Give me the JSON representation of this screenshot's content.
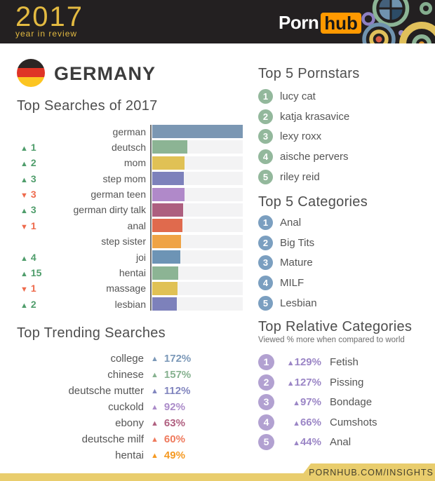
{
  "header": {
    "year": "2017",
    "year_sub": "year in review",
    "brand_porn": "Porn",
    "brand_hub": "hub"
  },
  "country": {
    "name": "GERMANY"
  },
  "icons": {
    "up": "▲",
    "down": "▼"
  },
  "colors": {
    "up": "#4f9d6b",
    "down": "#ee6a4c",
    "pornstars_badge": "#93b89c",
    "categories_badge": "#7b9fc0",
    "relative_badge": "#b2a1d1",
    "relative_accent": "#9b86c6"
  },
  "top_searches": {
    "title": "Top Searches of 2017",
    "items": [
      {
        "label": "german",
        "dir": null,
        "change": null,
        "value": 100,
        "color": "#7b97b3"
      },
      {
        "label": "deutsch",
        "dir": "up",
        "change": 1,
        "value": 39,
        "color": "#8cb494"
      },
      {
        "label": "mom",
        "dir": "up",
        "change": 2,
        "value": 36,
        "color": "#e0c155"
      },
      {
        "label": "step mom",
        "dir": "up",
        "change": 3,
        "value": 35,
        "color": "#7d81bb"
      },
      {
        "label": "german teen",
        "dir": "down",
        "change": 3,
        "value": 36,
        "color": "#b089c9"
      },
      {
        "label": "german dirty talk",
        "dir": "up",
        "change": 3,
        "value": 34,
        "color": "#ad5f7f"
      },
      {
        "label": "anal",
        "dir": "down",
        "change": 1,
        "value": 33,
        "color": "#e06a4d"
      },
      {
        "label": "step sister",
        "dir": null,
        "change": null,
        "value": 32,
        "color": "#efa345"
      },
      {
        "label": "joi",
        "dir": "up",
        "change": 4,
        "value": 31,
        "color": "#6d94b5"
      },
      {
        "label": "hentai",
        "dir": "up",
        "change": 15,
        "value": 29,
        "color": "#8cb494"
      },
      {
        "label": "massage",
        "dir": "down",
        "change": 1,
        "value": 28,
        "color": "#e0c155"
      },
      {
        "label": "lesbian",
        "dir": "up",
        "change": 2,
        "value": 27,
        "color": "#7d81bb"
      }
    ]
  },
  "trending": {
    "title": "Top Trending Searches",
    "items": [
      {
        "label": "college",
        "pct": "172%",
        "color": "#7b98b8"
      },
      {
        "label": "chinese",
        "pct": "157%",
        "color": "#87b290"
      },
      {
        "label": "deutsche mutter",
        "pct": "112%",
        "color": "#8286bf"
      },
      {
        "label": "cuckold",
        "pct": "92%",
        "color": "#ab8bc9"
      },
      {
        "label": "ebony",
        "pct": "63%",
        "color": "#b06080"
      },
      {
        "label": "deutsche milf",
        "pct": "60%",
        "color": "#ef7a5d"
      },
      {
        "label": "hentai",
        "pct": "49%",
        "color": "#f59a23"
      }
    ]
  },
  "pornstars": {
    "title": "Top 5 Pornstars",
    "items": [
      "lucy cat",
      "katja krasavice",
      "lexy roxx",
      "aische pervers",
      "riley reid"
    ]
  },
  "categories": {
    "title": "Top 5 Categories",
    "items": [
      "Anal",
      "Big Tits",
      "Mature",
      "MILF",
      "Lesbian"
    ]
  },
  "relative": {
    "title": "Top Relative Categories",
    "subtitle": "Viewed % more when compared to world",
    "items": [
      {
        "pct": "129%",
        "label": "Fetish"
      },
      {
        "pct": "127%",
        "label": "Pissing"
      },
      {
        "pct": "97%",
        "label": "Bondage"
      },
      {
        "pct": "66%",
        "label": "Cumshots"
      },
      {
        "pct": "44%",
        "label": "Anal"
      }
    ]
  },
  "footer": {
    "url": "PORNHUB.COM/INSIGHTS"
  },
  "chart_data": [
    {
      "type": "bar",
      "orientation": "horizontal",
      "title": "Top Searches of 2017",
      "categories": [
        "german",
        "deutsch",
        "mom",
        "step mom",
        "german teen",
        "german dirty talk",
        "anal",
        "step sister",
        "joi",
        "hentai",
        "massage",
        "lesbian"
      ],
      "values": [
        100,
        39,
        36,
        35,
        36,
        34,
        33,
        32,
        31,
        29,
        28,
        27
      ],
      "value_note": "relative bar length, % of longest bar (estimated from pixels)",
      "rank_change": [
        0,
        1,
        2,
        3,
        -3,
        3,
        -1,
        0,
        4,
        15,
        -1,
        2
      ],
      "xlim": [
        0,
        100
      ],
      "grid": false,
      "legend": false
    },
    {
      "type": "table",
      "title": "Top Trending Searches",
      "columns": [
        "search",
        "change"
      ],
      "rows": [
        [
          "college",
          "+172%"
        ],
        [
          "chinese",
          "+157%"
        ],
        [
          "deutsche mutter",
          "+112%"
        ],
        [
          "cuckold",
          "+92%"
        ],
        [
          "ebony",
          "+63%"
        ],
        [
          "deutsche milf",
          "+60%"
        ],
        [
          "hentai",
          "+49%"
        ]
      ]
    },
    {
      "type": "table",
      "title": "Top 5 Pornstars",
      "columns": [
        "rank",
        "name"
      ],
      "rows": [
        [
          "1",
          "lucy cat"
        ],
        [
          "2",
          "katja krasavice"
        ],
        [
          "3",
          "lexy roxx"
        ],
        [
          "4",
          "aische pervers"
        ],
        [
          "5",
          "riley reid"
        ]
      ]
    },
    {
      "type": "table",
      "title": "Top 5 Categories",
      "columns": [
        "rank",
        "category"
      ],
      "rows": [
        [
          "1",
          "Anal"
        ],
        [
          "2",
          "Big Tits"
        ],
        [
          "3",
          "Mature"
        ],
        [
          "4",
          "MILF"
        ],
        [
          "5",
          "Lesbian"
        ]
      ]
    },
    {
      "type": "table",
      "title": "Top Relative Categories",
      "subtitle": "Viewed % more when compared to world",
      "columns": [
        "rank",
        "change",
        "category"
      ],
      "rows": [
        [
          "1",
          "+129%",
          "Fetish"
        ],
        [
          "2",
          "+127%",
          "Pissing"
        ],
        [
          "3",
          "+97%",
          "Bondage"
        ],
        [
          "4",
          "+66%",
          "Cumshots"
        ],
        [
          "5",
          "+44%",
          "Anal"
        ]
      ]
    }
  ]
}
